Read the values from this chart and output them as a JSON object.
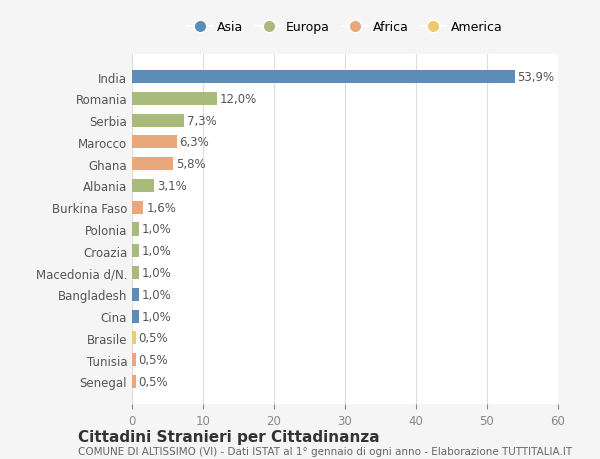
{
  "countries": [
    "India",
    "Romania",
    "Serbia",
    "Marocco",
    "Ghana",
    "Albania",
    "Burkina Faso",
    "Polonia",
    "Croazia",
    "Macedonia d/N.",
    "Bangladesh",
    "Cina",
    "Brasile",
    "Tunisia",
    "Senegal"
  ],
  "values": [
    53.9,
    12.0,
    7.3,
    6.3,
    5.8,
    3.1,
    1.6,
    1.0,
    1.0,
    1.0,
    1.0,
    1.0,
    0.5,
    0.5,
    0.5
  ],
  "labels": [
    "53,9%",
    "12,0%",
    "7,3%",
    "6,3%",
    "5,8%",
    "3,1%",
    "1,6%",
    "1,0%",
    "1,0%",
    "1,0%",
    "1,0%",
    "1,0%",
    "0,5%",
    "0,5%",
    "0,5%"
  ],
  "continents": [
    "Asia",
    "Europa",
    "Europa",
    "Africa",
    "Africa",
    "Europa",
    "Africa",
    "Europa",
    "Europa",
    "Europa",
    "Asia",
    "Asia",
    "America",
    "Africa",
    "Africa"
  ],
  "continent_colors": {
    "Asia": "#5b8db8",
    "Europa": "#a8bb7b",
    "Africa": "#e8a87c",
    "America": "#f0c96e"
  },
  "legend_order": [
    "Asia",
    "Europa",
    "Africa",
    "America"
  ],
  "xlim": [
    0,
    60
  ],
  "xticks": [
    0,
    10,
    20,
    30,
    40,
    50,
    60
  ],
  "title": "Cittadini Stranieri per Cittadinanza",
  "subtitle": "COMUNE DI ALTISSIMO (VI) - Dati ISTAT al 1° gennaio di ogni anno - Elaborazione TUTTITALIA.IT",
  "background_color": "#f5f5f5",
  "bar_background": "#ffffff",
  "label_fontsize": 8.5,
  "title_fontsize": 11,
  "subtitle_fontsize": 7.5
}
